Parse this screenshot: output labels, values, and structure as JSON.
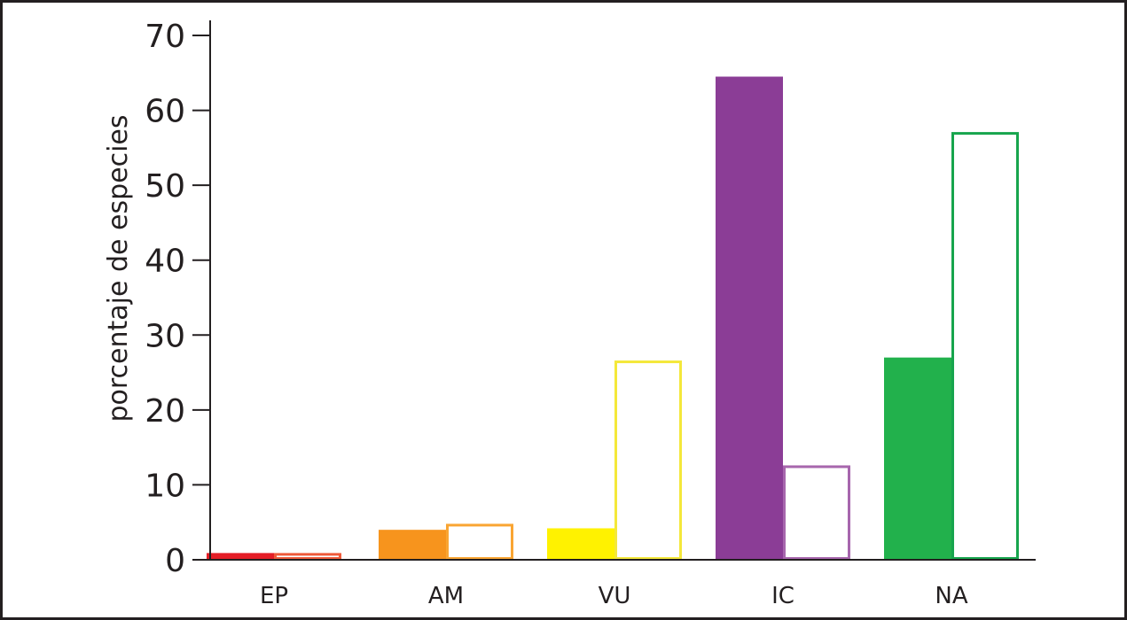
{
  "chart_data": {
    "type": "bar",
    "title": "",
    "xlabel": "",
    "ylabel": "porcentaje de especies",
    "ylim": [
      0,
      70
    ],
    "yticks": [
      0,
      10,
      20,
      30,
      40,
      50,
      60,
      70
    ],
    "grid": false,
    "categories": [
      "EP",
      "AM",
      "VU",
      "IC",
      "NA"
    ],
    "series": [
      {
        "style": "filled",
        "values": [
          0.9,
          4.0,
          4.2,
          64.5,
          27.0
        ],
        "colors": [
          "#e41e26",
          "#f7941d",
          "#fff200",
          "#8b3d96",
          "#22b14c"
        ]
      },
      {
        "style": "outline",
        "values": [
          0.9,
          4.8,
          26.6,
          12.6,
          57.1
        ],
        "colors": [
          "#ef5a3a",
          "#f9a533",
          "#f4e83a",
          "#a766ad",
          "#17a54d"
        ]
      }
    ]
  }
}
